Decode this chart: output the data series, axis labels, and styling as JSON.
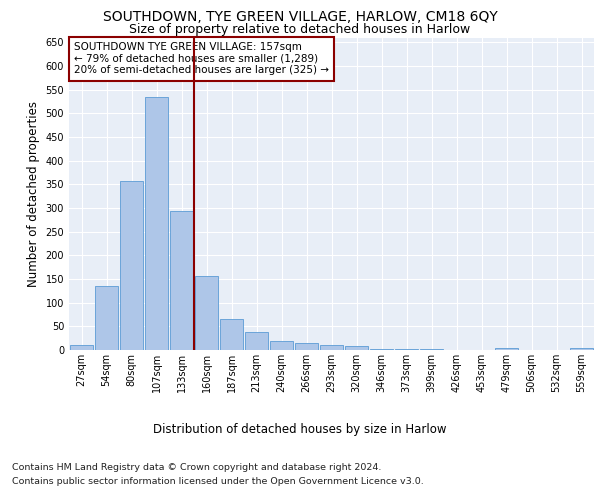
{
  "title": "SOUTHDOWN, TYE GREEN VILLAGE, HARLOW, CM18 6QY",
  "subtitle": "Size of property relative to detached houses in Harlow",
  "xlabel": "Distribution of detached houses by size in Harlow",
  "ylabel": "Number of detached properties",
  "categories": [
    "27sqm",
    "54sqm",
    "80sqm",
    "107sqm",
    "133sqm",
    "160sqm",
    "187sqm",
    "213sqm",
    "240sqm",
    "266sqm",
    "293sqm",
    "320sqm",
    "346sqm",
    "373sqm",
    "399sqm",
    "426sqm",
    "453sqm",
    "479sqm",
    "506sqm",
    "532sqm",
    "559sqm"
  ],
  "values": [
    10,
    135,
    357,
    535,
    293,
    157,
    65,
    38,
    18,
    15,
    10,
    8,
    3,
    3,
    3,
    0,
    0,
    4,
    0,
    0,
    4
  ],
  "bar_color": "#aec6e8",
  "bar_edge_color": "#5b9bd5",
  "vline_color": "#8b0000",
  "annotation_text": "SOUTHDOWN TYE GREEN VILLAGE: 157sqm\n← 79% of detached houses are smaller (1,289)\n20% of semi-detached houses are larger (325) →",
  "annotation_box_color": "#ffffff",
  "annotation_box_edge_color": "#8b0000",
  "ylim": [
    0,
    660
  ],
  "yticks": [
    0,
    50,
    100,
    150,
    200,
    250,
    300,
    350,
    400,
    450,
    500,
    550,
    600,
    650
  ],
  "plot_bg_color": "#e8eef7",
  "footer_line1": "Contains HM Land Registry data © Crown copyright and database right 2024.",
  "footer_line2": "Contains public sector information licensed under the Open Government Licence v3.0.",
  "title_fontsize": 10,
  "subtitle_fontsize": 9,
  "axis_label_fontsize": 8.5,
  "tick_fontsize": 7,
  "annotation_fontsize": 7.5,
  "footer_fontsize": 6.8
}
